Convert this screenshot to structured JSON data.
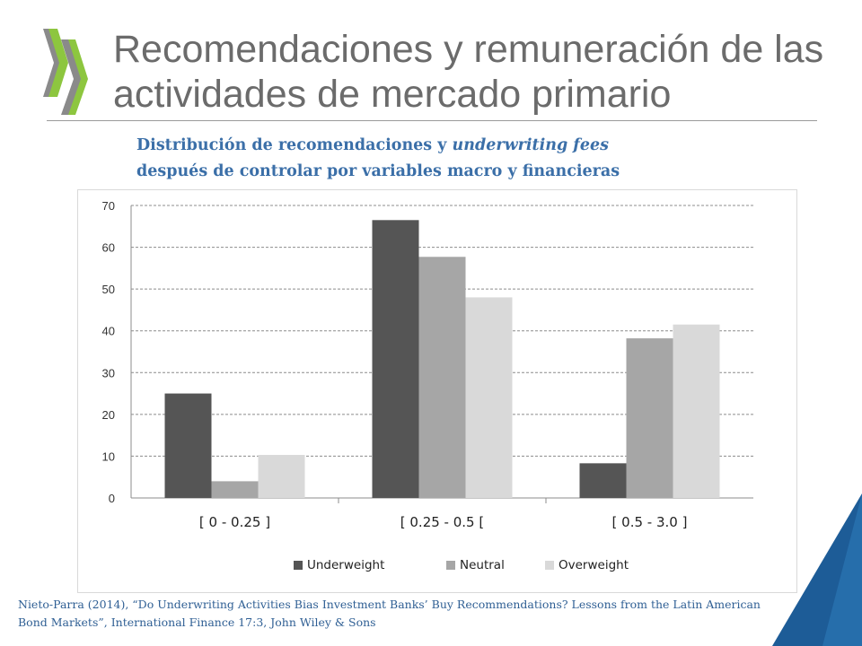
{
  "slide": {
    "title": "Recomendaciones y remuneración de las actividades de mercado primario",
    "subtitle_part1": "Distribución de recomendaciones",
    "subtitle_connector": "y",
    "subtitle_italic": "underwriting fees",
    "subtitle_line2": "después de controlar por variables macro y financieras",
    "citation": "Nieto-Parra (2014), “Do Underwriting Activities Bias Investment Banks’ Buy Recommendations? Lessons from the Latin American Bond Markets”, International Finance 17:3, John Wiley & Sons"
  },
  "colors": {
    "title": "#6b6b6b",
    "subtitle": "#3b6fa8",
    "citation": "#2f5f94",
    "logo_gray": "#8a8a8a",
    "logo_green": "#8dc63f",
    "corner_dark": "#1d5c97",
    "corner_light": "#3a8fd0"
  },
  "chart_data": {
    "type": "bar",
    "categories": [
      "[ 0 - 0.25 ]",
      "[ 0.25 - 0.5 [",
      "[ 0.5 - 3.0 ]"
    ],
    "series": [
      {
        "name": "Underweight",
        "values": [
          25,
          66.5,
          8.3
        ],
        "color": "#555555"
      },
      {
        "name": "Neutral",
        "values": [
          4,
          57.7,
          38.2
        ],
        "color": "#a6a6a6"
      },
      {
        "name": "Overweight",
        "values": [
          10.3,
          48,
          41.5
        ],
        "color": "#d9d9d9"
      }
    ],
    "yticks": [
      "0",
      "10",
      "20",
      "30",
      "40",
      "50",
      "60",
      "70"
    ],
    "ylim": [
      0,
      70
    ],
    "grid": true,
    "legend": "bottom"
  }
}
